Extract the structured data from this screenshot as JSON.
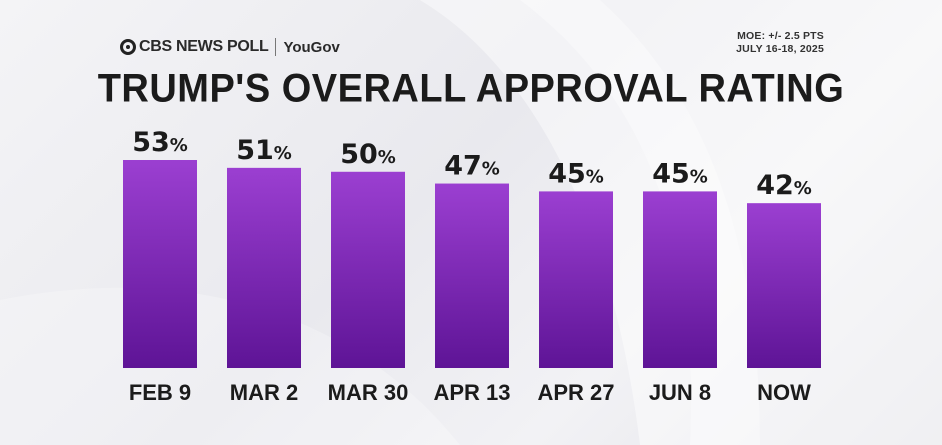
{
  "header": {
    "brand": "CBS NEWS POLL",
    "partner": "YouGov",
    "moe_line1": "MOE: +/- 2.5 PTS",
    "moe_line2": "JULY 16-18, 2025"
  },
  "colors": {
    "bar_top": "#9b3fd1",
    "bar_bottom": "#5e1496",
    "text": "#1b1b1b"
  },
  "chart_data": {
    "type": "bar",
    "title": "TRUMP'S OVERALL APPROVAL RATING",
    "categories": [
      "FEB 9",
      "MAR 2",
      "MAR 30",
      "APR 13",
      "APR 27",
      "JUN 8",
      "NOW"
    ],
    "values": [
      53,
      51,
      50,
      47,
      45,
      45,
      42
    ],
    "data_labels": [
      "53%",
      "51%",
      "50%",
      "47%",
      "45%",
      "45%",
      "42%"
    ],
    "xlabel": "",
    "ylabel": "",
    "ylim": [
      0,
      53
    ],
    "grid": false,
    "legend": "none"
  }
}
